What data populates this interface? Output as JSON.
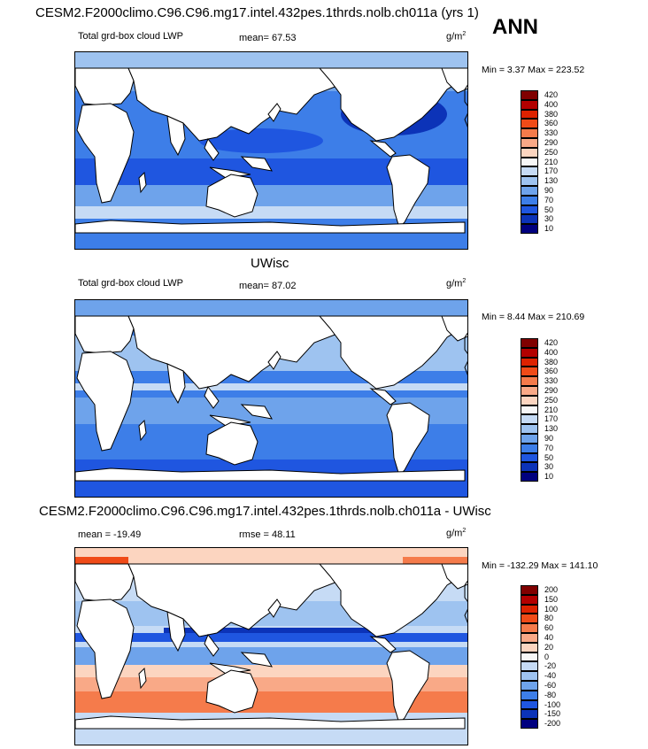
{
  "header": {
    "case_title": "CESM2.F2000climo.C96.C96.mg17.intel.432pes.1thrds.nolb.ch011a (yrs 1)",
    "season": "ANN"
  },
  "panels": [
    {
      "variable": "Total grd-box cloud LWP",
      "mean_text": "mean=  67.53",
      "units": "g/m",
      "units_exp": "2",
      "minmax": "Min =   3.37 Max = 223.52",
      "colorbar": [
        "420",
        "400",
        "380",
        "360",
        "330",
        "290",
        "250",
        "210",
        "170",
        "130",
        "90",
        "70",
        "50",
        "30",
        "10"
      ],
      "colors": [
        "#800000",
        "#b30000",
        "#dd2200",
        "#f04b18",
        "#f57b4b",
        "#f9a987",
        "#fcd5c0",
        "#f7f7f7",
        "#c6dbf5",
        "#9ec3f0",
        "#6ea3eb",
        "#3d7ee8",
        "#1f56e0",
        "#0c33b8",
        "#00007f"
      ]
    },
    {
      "section_title": "UWisc",
      "variable": "Total grd-box cloud LWP",
      "mean_text": "mean=  87.02",
      "units": "g/m",
      "units_exp": "2",
      "minmax": "Min =   8.44 Max = 210.69",
      "colorbar": [
        "420",
        "400",
        "380",
        "360",
        "330",
        "290",
        "250",
        "210",
        "170",
        "130",
        "90",
        "70",
        "50",
        "30",
        "10"
      ],
      "colors": [
        "#800000",
        "#b30000",
        "#dd2200",
        "#f04b18",
        "#f57b4b",
        "#f9a987",
        "#fcd5c0",
        "#f7f7f7",
        "#c6dbf5",
        "#9ec3f0",
        "#6ea3eb",
        "#3d7ee8",
        "#1f56e0",
        "#0c33b8",
        "#00007f"
      ]
    },
    {
      "section_title": "CESM2.F2000climo.C96.C96.mg17.intel.432pes.1thrds.nolb.ch011a - UWisc",
      "mean_text": "mean = -19.49",
      "rmse_text": "rmse =  48.11",
      "units": "g/m",
      "units_exp": "2",
      "minmax": "Min = -132.29 Max = 141.10",
      "colorbar": [
        "200",
        "150",
        "100",
        "80",
        "60",
        "40",
        "20",
        "0",
        "-20",
        "-40",
        "-60",
        "-80",
        "-100",
        "-150",
        "-200"
      ],
      "colors": [
        "#800000",
        "#b30000",
        "#dd2200",
        "#f04b18",
        "#f57b4b",
        "#f9a987",
        "#fcd5c0",
        "#f7f7f7",
        "#c6dbf5",
        "#9ec3f0",
        "#6ea3eb",
        "#3d7ee8",
        "#1f56e0",
        "#0c33b8",
        "#00007f"
      ]
    }
  ]
}
